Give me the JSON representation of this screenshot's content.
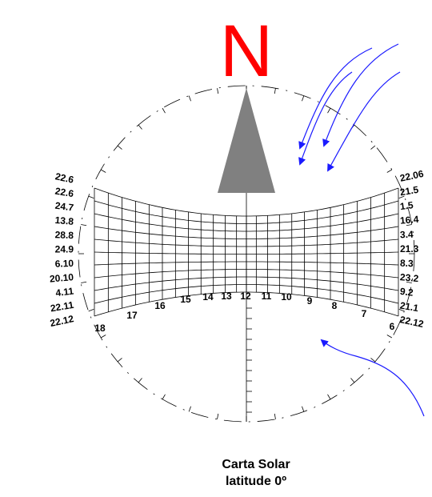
{
  "north": "N",
  "left_labels": [
    "22.6",
    "22.6",
    "24.7",
    "13.8",
    "28.8",
    "24.9",
    "6.10",
    "20.10",
    "4.11",
    "22.11",
    "22.12"
  ],
  "right_labels": [
    "22.06",
    "21.5",
    "1.5",
    "16.4",
    "3.4",
    "21.3",
    "8.3",
    "23.2",
    "9.2",
    "21.1",
    "22.12"
  ],
  "hour_labels": [
    "18",
    "17",
    "16",
    "15",
    "14",
    "13",
    "12",
    "11",
    "10",
    "9",
    "8",
    "7",
    "6"
  ],
  "caption": {
    "title": "Carta Solar",
    "subtitle": "latitude 0º"
  }
}
